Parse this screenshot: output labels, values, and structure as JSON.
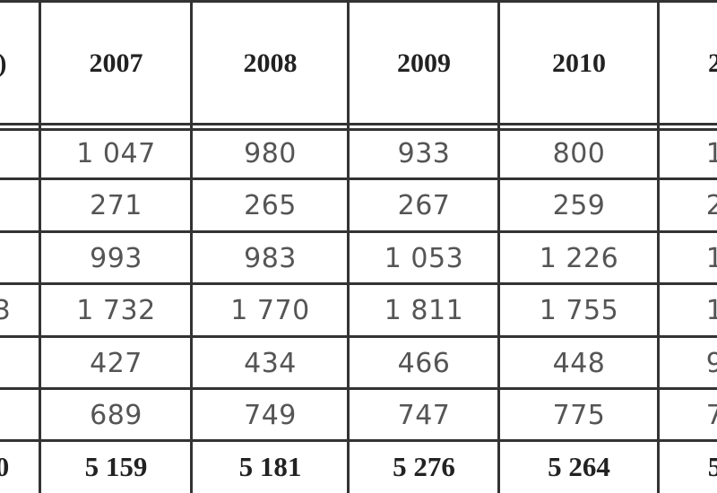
{
  "table": {
    "header": [
      ")",
      "2007",
      "2008",
      "2009",
      "2010",
      "2"
    ],
    "rows": [
      [
        null,
        "1 047",
        "980",
        "933",
        "800",
        "1"
      ],
      [
        null,
        "271",
        "265",
        "267",
        "259",
        "2"
      ],
      [
        null,
        "993",
        "983",
        "1 053",
        "1 226",
        "1"
      ],
      [
        "3",
        "1 732",
        "1 770",
        "1 811",
        "1 755",
        "1"
      ],
      [
        null,
        "427",
        "434",
        "466",
        "448",
        "9"
      ],
      [
        null,
        "689",
        "749",
        "747",
        "775",
        "7"
      ],
      [
        "0",
        "5 159",
        "5 181",
        "5 276",
        "5 264",
        "5"
      ]
    ]
  }
}
